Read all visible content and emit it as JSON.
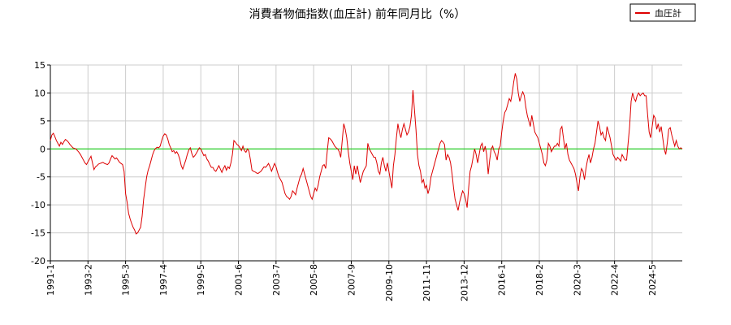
{
  "chart_data": {
    "type": "line",
    "title": "消費者物価指数(血圧計) 前年同月比（%）",
    "categories": [
      "1991-1",
      null,
      null,
      null,
      null,
      null,
      null,
      null,
      null,
      null,
      null,
      null,
      null,
      null,
      null,
      null,
      null,
      null,
      null,
      null,
      null,
      null,
      null,
      null,
      null,
      "1993-2",
      null,
      null,
      null,
      null,
      null,
      null,
      null,
      null,
      null,
      null,
      null,
      null,
      null,
      null,
      null,
      null,
      null,
      null,
      null,
      null,
      null,
      null,
      null,
      null,
      "1995-3",
      null,
      null,
      null,
      null,
      null,
      null,
      null,
      null,
      null,
      null,
      null,
      null,
      null,
      null,
      null,
      null,
      null,
      null,
      null,
      null,
      null,
      null,
      null,
      null,
      "1997-4",
      null,
      null,
      null,
      null,
      null,
      null,
      null,
      null,
      null,
      null,
      null,
      null,
      null,
      null,
      null,
      null,
      null,
      null,
      null,
      null,
      null,
      null,
      null,
      null,
      "1999-5",
      null,
      null,
      null,
      null,
      null,
      null,
      null,
      null,
      null,
      null,
      null,
      null,
      null,
      null,
      null,
      null,
      null,
      null,
      null,
      null,
      null,
      null,
      null,
      null,
      "2001-6",
      null,
      null,
      null,
      null,
      null,
      null,
      null,
      null,
      null,
      null,
      null,
      null,
      null,
      null,
      null,
      null,
      null,
      null,
      null,
      null,
      null,
      null,
      null,
      null,
      "2003-7",
      null,
      null,
      null,
      null,
      null,
      null,
      null,
      null,
      null,
      null,
      null,
      null,
      null,
      null,
      null,
      null,
      null,
      null,
      null,
      null,
      null,
      null,
      null,
      null,
      "2005-8",
      null,
      null,
      null,
      null,
      null,
      null,
      null,
      null,
      null,
      null,
      null,
      null,
      null,
      null,
      null,
      null,
      null,
      null,
      null,
      null,
      null,
      null,
      null,
      null,
      "2007-9",
      null,
      null,
      null,
      null,
      null,
      null,
      null,
      null,
      null,
      null,
      null,
      null,
      null,
      null,
      null,
      null,
      null,
      null,
      null,
      null,
      null,
      null,
      null,
      null,
      "2009-10",
      null,
      null,
      null,
      null,
      null,
      null,
      null,
      null,
      null,
      null,
      null,
      null,
      null,
      null,
      null,
      null,
      null,
      null,
      null,
      null,
      null,
      null,
      null,
      null,
      "2011-11",
      null,
      null,
      null,
      null,
      null,
      null,
      null,
      null,
      null,
      null,
      null,
      null,
      null,
      null,
      null,
      null,
      null,
      null,
      null,
      null,
      null,
      null,
      null,
      null,
      "2013-12",
      null,
      null,
      null,
      null,
      null,
      null,
      null,
      null,
      null,
      null,
      null,
      null,
      null,
      null,
      null,
      null,
      null,
      null,
      null,
      null,
      null,
      null,
      null,
      null,
      "2016-1",
      null,
      null,
      null,
      null,
      null,
      null,
      null,
      null,
      null,
      null,
      null,
      null,
      null,
      null,
      null,
      null,
      null,
      null,
      null,
      null,
      null,
      null,
      null,
      null,
      "2018-2",
      null,
      null,
      null,
      null,
      null,
      null,
      null,
      null,
      null,
      null,
      null,
      null,
      null,
      null,
      null,
      null,
      null,
      null,
      null,
      null,
      null,
      null,
      null,
      null,
      "2020-3",
      null,
      null,
      null,
      null,
      null,
      null,
      null,
      null,
      null,
      null,
      null,
      null,
      null,
      null,
      null,
      null,
      null,
      null,
      null,
      null,
      null,
      null,
      null,
      null,
      "2022-4",
      null,
      null,
      null,
      null,
      null,
      null,
      null,
      null,
      null,
      null,
      null,
      null,
      null,
      null,
      null,
      null,
      null,
      null,
      null,
      null,
      null,
      null,
      null,
      null,
      "2024-5",
      null,
      null,
      null,
      null,
      null,
      null,
      null,
      null,
      null,
      null,
      null,
      null,
      null,
      null,
      null,
      null,
      null,
      null,
      null,
      null
    ],
    "series": [
      {
        "name": "血圧計",
        "color": "#dd0000",
        "values": [
          1.5,
          2.5,
          2.8,
          2.2,
          1.5,
          1.0,
          0.5,
          1.2,
          0.8,
          1.3,
          1.7,
          1.5,
          1.2,
          0.8,
          0.5,
          0.2,
          0.1,
          0,
          -0.3,
          -0.6,
          -1.0,
          -1.5,
          -2.0,
          -2.5,
          -2.8,
          -2.3,
          -1.8,
          -1.3,
          -2.5,
          -3.7,
          -3.2,
          -3.0,
          -2.7,
          -2.6,
          -2.5,
          -2.4,
          -2.6,
          -2.7,
          -2.8,
          -2.5,
          -1.8,
          -1.2,
          -1.5,
          -1.8,
          -1.6,
          -2.0,
          -2.4,
          -2.6,
          -2.8,
          -4,
          -8,
          -9.5,
          -11.5,
          -12.5,
          -13.3,
          -14,
          -14.5,
          -15.2,
          -15,
          -14.5,
          -14,
          -12,
          -9,
          -7,
          -5,
          -3.8,
          -3,
          -2,
          -1,
          -0.3,
          0.1,
          0.3,
          0.2,
          0.5,
          1.5,
          2.3,
          2.7,
          2.5,
          1.8,
          0.8,
          0.2,
          -0.5,
          -0.3,
          -0.8,
          -0.5,
          -1.0,
          -1.8,
          -3.0,
          -3.6,
          -2.8,
          -2.0,
          -1.0,
          -0.2,
          0.2,
          -0.8,
          -1.5,
          -1.2,
          -0.8,
          -0.3,
          0.2,
          0,
          -0.6,
          -1.2,
          -1.0,
          -1.8,
          -2.2,
          -2.8,
          -3.3,
          -3.3,
          -3.8,
          -4.0,
          -3.5,
          -3.0,
          -3.6,
          -4.2,
          -3.5,
          -3.0,
          -3.8,
          -3.2,
          -3.5,
          -2.5,
          -1.0,
          1.5,
          1.2,
          0.8,
          0.6,
          0.2,
          -0.3,
          0.5,
          -0.3,
          -0.6,
          0.0,
          -0.4,
          -2.0,
          -3.8,
          -4.0,
          -4.1,
          -4.3,
          -4.4,
          -4.2,
          -4.0,
          -3.6,
          -3.2,
          -3.3,
          -3.0,
          -2.6,
          -3.2,
          -4.0,
          -3.3,
          -2.6,
          -3.2,
          -4.2,
          -5.0,
          -5.5,
          -6.0,
          -7.0,
          -8.0,
          -8.5,
          -8.7,
          -9.0,
          -8.5,
          -7.5,
          -7.8,
          -8.2,
          -7.0,
          -6.0,
          -5.0,
          -4.5,
          -3.5,
          -4.5,
          -5.5,
          -6.5,
          -7.5,
          -8.5,
          -9.0,
          -8.0,
          -7.0,
          -7.5,
          -6.5,
          -5.0,
          -4.0,
          -3.0,
          -2.8,
          -3.5,
          -0.5,
          2.0,
          1.8,
          1.5,
          1.0,
          0.5,
          0.2,
          0.0,
          -0.5,
          -1.5,
          1.5,
          4.5,
          3.5,
          2.0,
          -0.5,
          -2.5,
          -4.0,
          -5.5,
          -3.0,
          -4.5,
          -3.0,
          -4.5,
          -6.0,
          -5.0,
          -4.0,
          -3.5,
          -3.0,
          1.0,
          0.0,
          -0.5,
          -1.0,
          -1.5,
          -1.5,
          -2.5,
          -4.0,
          -4.5,
          -2.5,
          -1.5,
          -3.0,
          -4.0,
          -2.5,
          -4.0,
          -5.5,
          -7.0,
          -3.0,
          -1.0,
          2.0,
          4.5,
          3.0,
          2.0,
          3.5,
          4.5,
          3.5,
          2.5,
          3.0,
          4.0,
          6.0,
          10.5,
          7.0,
          3.5,
          -1.0,
          -3.0,
          -4.0,
          -6.0,
          -5.5,
          -7.0,
          -6.5,
          -8.0,
          -7.0,
          -5.0,
          -4.0,
          -3.0,
          -2.0,
          -1.0,
          0.0,
          1.0,
          1.5,
          1.2,
          0.8,
          -2.0,
          -1.0,
          -1.5,
          -2.5,
          -4.5,
          -7.0,
          -9.0,
          -10.0,
          -11.0,
          -9.5,
          -8.5,
          -7.5,
          -8.0,
          -9.0,
          -10.5,
          -7.0,
          -4.0,
          -3.0,
          -1.5,
          0.0,
          -1.0,
          -2.5,
          -1.0,
          0.5,
          1.0,
          -0.5,
          0.5,
          -1.0,
          -4.5,
          -2.0,
          0.0,
          0.5,
          -0.5,
          -1.0,
          -2.0,
          0.0,
          0.5,
          3.0,
          5.0,
          6.5,
          7.0,
          8.0,
          9.0,
          8.5,
          10.0,
          12.0,
          13.5,
          12.5,
          10.0,
          8.5,
          9.5,
          10.2,
          9.5,
          7.5,
          6.0,
          5.0,
          4.0,
          6.0,
          4.5,
          3.0,
          2.5,
          2.0,
          1.0,
          0.0,
          -1.0,
          -2.5,
          -3.0,
          -2.0,
          1.0,
          0.5,
          -0.5,
          0.0,
          0.5,
          0.5,
          1.0,
          0.5,
          3.5,
          4.0,
          2.0,
          0.0,
          1.0,
          -1.0,
          -2.0,
          -2.5,
          -3.0,
          -3.5,
          -4.5,
          -6.0,
          -7.5,
          -5.0,
          -3.5,
          -4.0,
          -5.5,
          -3.5,
          -2.0,
          -1.0,
          -2.5,
          -1.5,
          0.0,
          1.0,
          3.0,
          5.0,
          4.0,
          2.5,
          3.0,
          2.0,
          1.5,
          4.0,
          3.0,
          2.0,
          0.5,
          -1.0,
          -1.5,
          -2.0,
          -1.5,
          -1.8,
          -2.2,
          -1.0,
          -1.5,
          -2.0,
          -2.0,
          1.0,
          4.0,
          8.5,
          10.0,
          9.0,
          8.5,
          9.5,
          10.0,
          9.5,
          9.8,
          10.0,
          9.5,
          9.5,
          6.0,
          3.0,
          2.0,
          4.0,
          6.0,
          5.5,
          3.5,
          4.5,
          3.0,
          4.0,
          2.0,
          0.0,
          -1.0,
          1.0,
          3.5,
          3.8,
          2.5,
          1.5,
          0.5,
          1.5,
          0.5,
          0.0,
          0.2,
          0.0
        ]
      }
    ],
    "ylim": [
      -20,
      15
    ],
    "yticks": [
      -20,
      -15,
      -10,
      -5,
      0,
      5,
      10,
      15
    ],
    "grid": true,
    "reference_line": {
      "value": 0,
      "color": "#00cc00"
    },
    "legend": "top-right"
  }
}
